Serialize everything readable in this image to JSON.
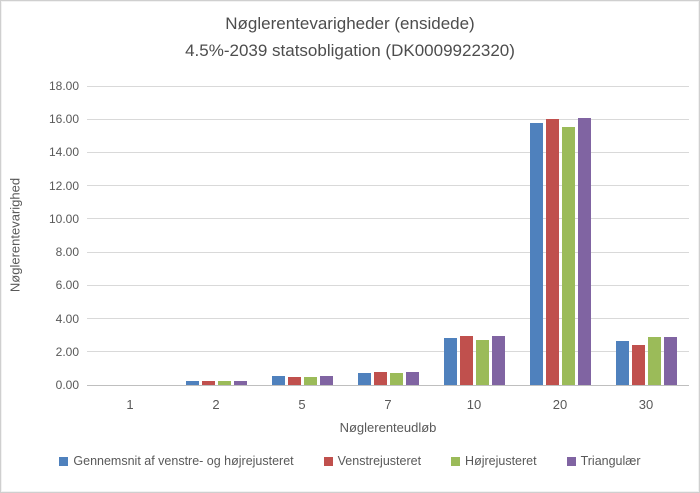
{
  "chart": {
    "title_line1": "Nøglerentevarigheder (ensidede)",
    "title_line2": "4.5%-2039 statsobligation (DK0009922320)"
  },
  "chart_data": {
    "type": "bar",
    "title": "Nøglerentevarigheder (ensidede) 4.5%-2039 statsobligation (DK0009922320)",
    "xlabel": "Nøglerenteudløb",
    "ylabel": "Nøglerentevarighed",
    "categories": [
      "1",
      "2",
      "5",
      "7",
      "10",
      "20",
      "30"
    ],
    "series": [
      {
        "name": "Gennemsnit af venstre- og højrejusteret",
        "color": "#4F81BD",
        "values": [
          0.0,
          0.25,
          0.52,
          0.72,
          2.85,
          15.75,
          2.65
        ]
      },
      {
        "name": "Venstrejusteret",
        "color": "#C0504D",
        "values": [
          0.0,
          0.25,
          0.5,
          0.8,
          2.95,
          16.0,
          2.4
        ]
      },
      {
        "name": "Højrejusteret",
        "color": "#9BBB59",
        "values": [
          0.0,
          0.25,
          0.5,
          0.72,
          2.72,
          15.55,
          2.9
        ]
      },
      {
        "name": "Triangulær",
        "color": "#8064A2",
        "values": [
          0.0,
          0.25,
          0.52,
          0.76,
          2.95,
          16.1,
          2.9
        ]
      }
    ],
    "ylim": [
      0,
      18
    ],
    "ytick_step": 2,
    "ytick_labels": [
      "0.00",
      "2.00",
      "4.00",
      "6.00",
      "8.00",
      "10.00",
      "12.00",
      "14.00",
      "16.00",
      "18.00"
    ],
    "grid": "horizontal",
    "legend_position": "bottom"
  }
}
